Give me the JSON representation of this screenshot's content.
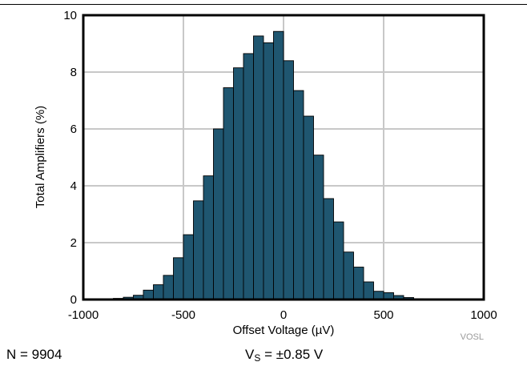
{
  "chart_data": {
    "type": "bar",
    "xlabel": "Offset Voltage (µV)",
    "ylabel": "Total Amplifiers (%)",
    "xlim": [
      -1000,
      1000
    ],
    "ylim": [
      0,
      10
    ],
    "xticks": [
      "-1000",
      "-500",
      "0",
      "500",
      "1000"
    ],
    "yticks": [
      "0",
      "2",
      "4",
      "6",
      "8",
      "10"
    ],
    "grid": true,
    "bar_color": "#1f5670",
    "bin_width": 50,
    "bin_centers": [
      -925,
      -875,
      -825,
      -775,
      -725,
      -675,
      -625,
      -575,
      -525,
      -475,
      -425,
      -375,
      -325,
      -275,
      -225,
      -175,
      -125,
      -75,
      -25,
      25,
      75,
      125,
      175,
      225,
      275,
      325,
      375,
      425,
      475,
      525,
      575,
      625,
      675,
      725,
      775,
      825,
      875,
      925
    ],
    "values": [
      0.01,
      0.02,
      0.04,
      0.08,
      0.15,
      0.33,
      0.52,
      0.85,
      1.47,
      2.28,
      3.47,
      4.35,
      6.0,
      7.45,
      8.15,
      8.65,
      9.27,
      9.03,
      9.43,
      8.4,
      7.35,
      6.45,
      5.08,
      3.55,
      2.73,
      1.67,
      1.14,
      0.62,
      0.29,
      0.24,
      0.14,
      0.07,
      0.03,
      0.02,
      0.01,
      0.01,
      0.0,
      0.0
    ]
  },
  "watermark": "VOSL",
  "footer": {
    "n_text": "N = 9904",
    "vs_prefix": "V",
    "vs_sub": "S",
    "vs_suffix": " = ±0.85 V"
  },
  "colors": {
    "bar": "#1f5670",
    "grid": "#c8c8c8",
    "frame": "#000000"
  }
}
